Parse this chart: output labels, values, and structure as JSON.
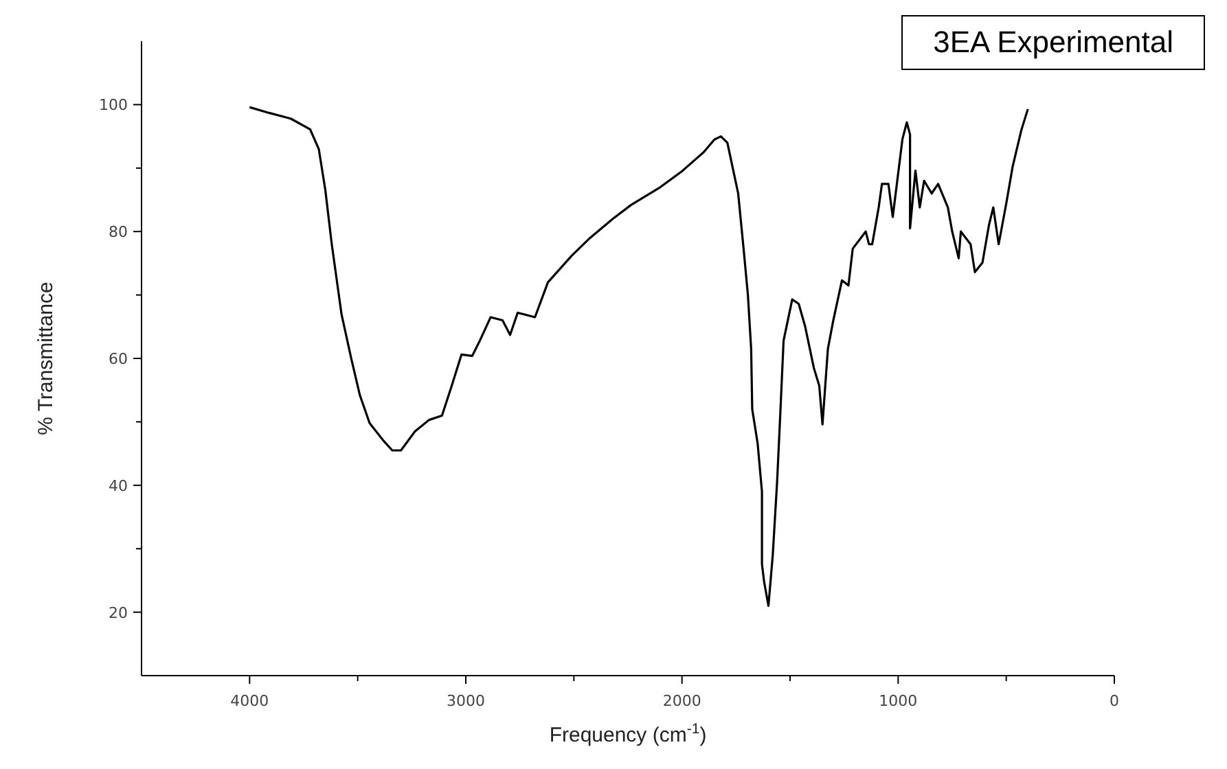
{
  "chart_data": {
    "type": "line",
    "xlabel": "Frequency (cm$^{-1}$)",
    "ylabel": "% Transmittance",
    "legend": "top right",
    "xlim": [
      4500,
      0
    ],
    "xticks": [
      4000,
      {
        "value": 3500,
        "label": null
      },
      3000,
      {
        "value": 2500,
        "label": null
      },
      2000,
      {
        "value": 1500,
        "label": null
      },
      1000,
      {
        "value": 500,
        "label": null
      },
      0
    ],
    "ylim": [
      10,
      110
    ],
    "yticks": [
      20,
      {
        "value": 30,
        "label": null
      },
      40,
      {
        "value": 50,
        "label": null
      },
      60,
      {
        "value": 70,
        "label": null
      },
      80,
      {
        "value": 90,
        "label": null
      },
      100
    ],
    "series": [
      {
        "name": "3EA Experimental",
        "color": "#000000",
        "x": [
          4000,
          3910,
          3810,
          3720,
          3680,
          3650,
          3620,
          3575,
          3530,
          3490,
          3445,
          3380,
          3340,
          3300,
          3235,
          3170,
          3110,
          3065,
          3020,
          2970,
          2935,
          2885,
          2830,
          2795,
          2760,
          2680,
          2620,
          2510,
          2425,
          2320,
          2235,
          2100,
          2000,
          1900,
          1850,
          1820,
          1790,
          1740,
          1715,
          1695,
          1680,
          1675,
          1650,
          1630,
          1630,
          1620,
          1600,
          1580,
          1560,
          1545,
          1530,
          1490,
          1460,
          1430,
          1390,
          1365,
          1350,
          1325,
          1300,
          1260,
          1230,
          1210,
          1150,
          1135,
          1120,
          1090,
          1075,
          1045,
          1025,
          980,
          960,
          945,
          945,
          920,
          900,
          880,
          845,
          815,
          770,
          750,
          720,
          710,
          665,
          645,
          610,
          580,
          560,
          535,
          500,
          470,
          430,
          400
        ],
        "values": [
          99.6,
          98.7,
          97.8,
          96.1,
          93,
          86.6,
          78,
          67,
          60,
          54.2,
          49.8,
          47,
          45.5,
          45.5,
          48.5,
          50.3,
          51,
          55.7,
          60.6,
          60.4,
          62.8,
          66.5,
          66,
          63.7,
          67.2,
          66.5,
          72,
          76.2,
          79,
          82,
          84.2,
          87,
          89.5,
          92.5,
          94.5,
          95,
          94,
          86,
          77.3,
          70,
          61.5,
          52,
          46.6,
          39,
          27.6,
          24.8,
          21,
          29,
          40.5,
          51.4,
          62.8,
          69.3,
          68.6,
          65,
          58.5,
          55.7,
          49.6,
          61.5,
          66,
          72.3,
          71.5,
          77.3,
          80,
          78,
          78,
          83.8,
          87.5,
          87.5,
          82.3,
          94.6,
          97.2,
          95.3,
          80.5,
          89.6,
          83.8,
          88,
          86,
          87.5,
          83.8,
          80,
          75.8,
          80,
          78,
          73.6,
          75.1,
          81,
          83.8,
          78,
          84.4,
          90.3,
          96,
          99.3
        ]
      }
    ]
  }
}
